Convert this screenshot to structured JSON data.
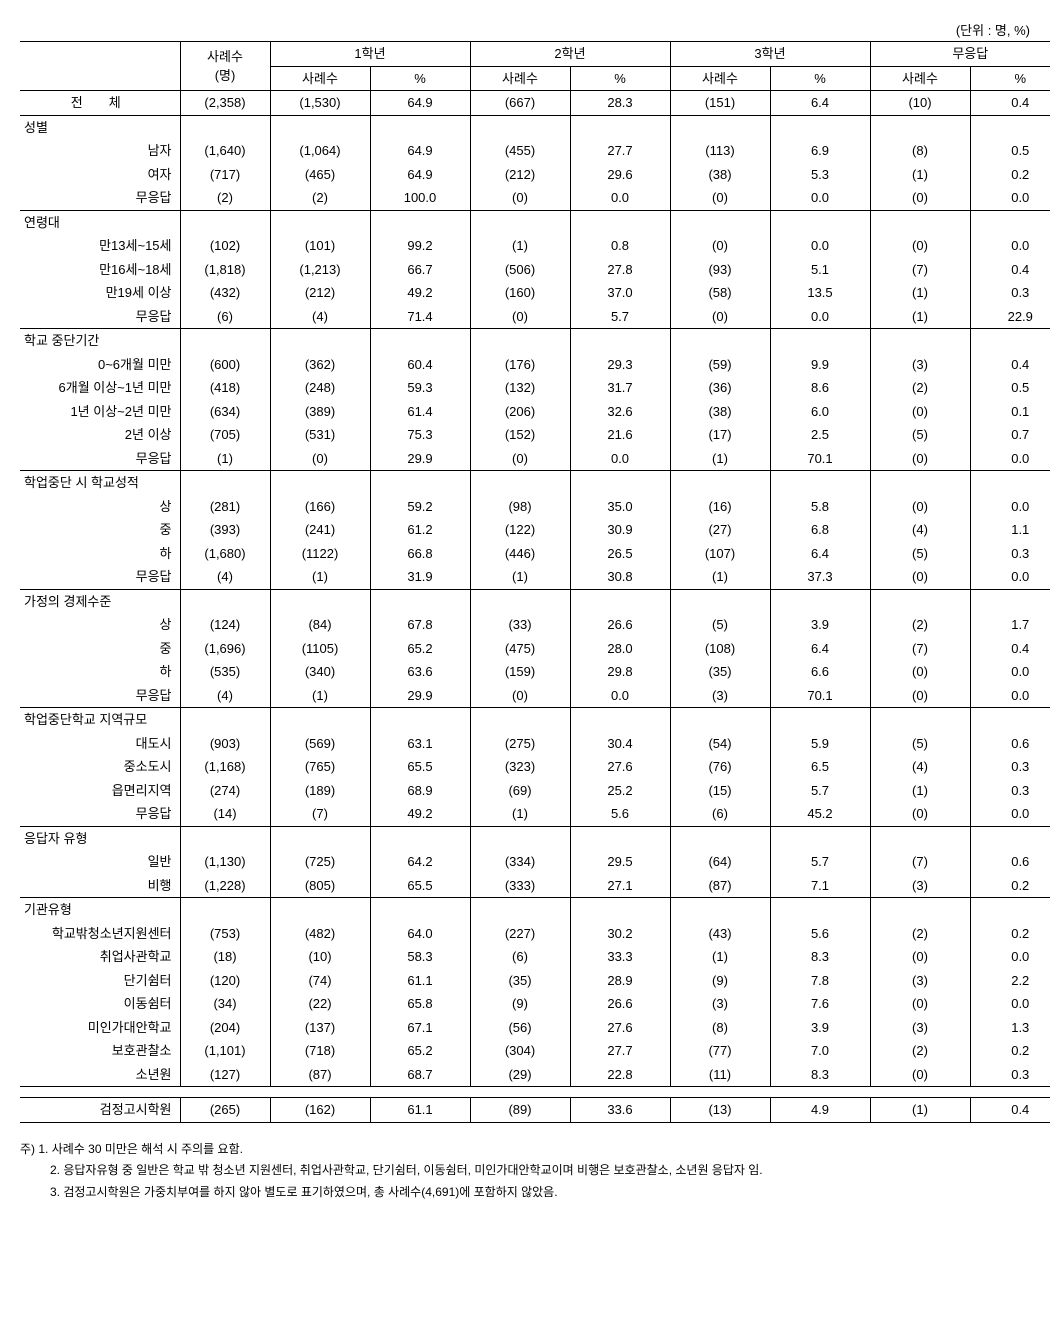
{
  "unit_label": "(단위 : 명, %)",
  "header": {
    "row_label": "",
    "count_label": "사례수",
    "count_sub": "(명)",
    "groups": [
      "1학년",
      "2학년",
      "3학년",
      "무응답"
    ],
    "sub_n": "사례수",
    "sub_p": "%"
  },
  "total_row": {
    "label": "전체",
    "count": "(2,358)",
    "c1n": "(1,530)",
    "c1p": "64.9",
    "c2n": "(667)",
    "c2p": "28.3",
    "c3n": "(151)",
    "c3p": "6.4",
    "c4n": "(10)",
    "c4p": "0.4"
  },
  "sections": [
    {
      "title": "성별",
      "rows": [
        {
          "label": "남자",
          "count": "(1,640)",
          "c1n": "(1,064)",
          "c1p": "64.9",
          "c2n": "(455)",
          "c2p": "27.7",
          "c3n": "(113)",
          "c3p": "6.9",
          "c4n": "(8)",
          "c4p": "0.5"
        },
        {
          "label": "여자",
          "count": "(717)",
          "c1n": "(465)",
          "c1p": "64.9",
          "c2n": "(212)",
          "c2p": "29.6",
          "c3n": "(38)",
          "c3p": "5.3",
          "c4n": "(1)",
          "c4p": "0.2"
        },
        {
          "label": "무응답",
          "count": "(2)",
          "c1n": "(2)",
          "c1p": "100.0",
          "c2n": "(0)",
          "c2p": "0.0",
          "c3n": "(0)",
          "c3p": "0.0",
          "c4n": "(0)",
          "c4p": "0.0"
        }
      ]
    },
    {
      "title": "연령대",
      "rows": [
        {
          "label": "만13세~15세",
          "count": "(102)",
          "c1n": "(101)",
          "c1p": "99.2",
          "c2n": "(1)",
          "c2p": "0.8",
          "c3n": "(0)",
          "c3p": "0.0",
          "c4n": "(0)",
          "c4p": "0.0"
        },
        {
          "label": "만16세~18세",
          "count": "(1,818)",
          "c1n": "(1,213)",
          "c1p": "66.7",
          "c2n": "(506)",
          "c2p": "27.8",
          "c3n": "(93)",
          "c3p": "5.1",
          "c4n": "(7)",
          "c4p": "0.4"
        },
        {
          "label": "만19세 이상",
          "count": "(432)",
          "c1n": "(212)",
          "c1p": "49.2",
          "c2n": "(160)",
          "c2p": "37.0",
          "c3n": "(58)",
          "c3p": "13.5",
          "c4n": "(1)",
          "c4p": "0.3"
        },
        {
          "label": "무응답",
          "count": "(6)",
          "c1n": "(4)",
          "c1p": "71.4",
          "c2n": "(0)",
          "c2p": "5.7",
          "c3n": "(0)",
          "c3p": "0.0",
          "c4n": "(1)",
          "c4p": "22.9"
        }
      ]
    },
    {
      "title": "학교 중단기간",
      "rows": [
        {
          "label": "0~6개월 미만",
          "count": "(600)",
          "c1n": "(362)",
          "c1p": "60.4",
          "c2n": "(176)",
          "c2p": "29.3",
          "c3n": "(59)",
          "c3p": "9.9",
          "c4n": "(3)",
          "c4p": "0.4"
        },
        {
          "label": "6개월 이상~1년 미만",
          "count": "(418)",
          "c1n": "(248)",
          "c1p": "59.3",
          "c2n": "(132)",
          "c2p": "31.7",
          "c3n": "(36)",
          "c3p": "8.6",
          "c4n": "(2)",
          "c4p": "0.5"
        },
        {
          "label": "1년 이상~2년 미만",
          "count": "(634)",
          "c1n": "(389)",
          "c1p": "61.4",
          "c2n": "(206)",
          "c2p": "32.6",
          "c3n": "(38)",
          "c3p": "6.0",
          "c4n": "(0)",
          "c4p": "0.1"
        },
        {
          "label": "2년 이상",
          "count": "(705)",
          "c1n": "(531)",
          "c1p": "75.3",
          "c2n": "(152)",
          "c2p": "21.6",
          "c3n": "(17)",
          "c3p": "2.5",
          "c4n": "(5)",
          "c4p": "0.7"
        },
        {
          "label": "무응답",
          "count": "(1)",
          "c1n": "(0)",
          "c1p": "29.9",
          "c2n": "(0)",
          "c2p": "0.0",
          "c3n": "(1)",
          "c3p": "70.1",
          "c4n": "(0)",
          "c4p": "0.0"
        }
      ]
    },
    {
      "title": "학업중단 시 학교성적",
      "rows": [
        {
          "label": "상",
          "count": "(281)",
          "c1n": "(166)",
          "c1p": "59.2",
          "c2n": "(98)",
          "c2p": "35.0",
          "c3n": "(16)",
          "c3p": "5.8",
          "c4n": "(0)",
          "c4p": "0.0"
        },
        {
          "label": "중",
          "count": "(393)",
          "c1n": "(241)",
          "c1p": "61.2",
          "c2n": "(122)",
          "c2p": "30.9",
          "c3n": "(27)",
          "c3p": "6.8",
          "c4n": "(4)",
          "c4p": "1.1"
        },
        {
          "label": "하",
          "count": "(1,680)",
          "c1n": "(1122)",
          "c1p": "66.8",
          "c2n": "(446)",
          "c2p": "26.5",
          "c3n": "(107)",
          "c3p": "6.4",
          "c4n": "(5)",
          "c4p": "0.3"
        },
        {
          "label": "무응답",
          "count": "(4)",
          "c1n": "(1)",
          "c1p": "31.9",
          "c2n": "(1)",
          "c2p": "30.8",
          "c3n": "(1)",
          "c3p": "37.3",
          "c4n": "(0)",
          "c4p": "0.0"
        }
      ]
    },
    {
      "title": "가정의 경제수준",
      "rows": [
        {
          "label": "상",
          "count": "(124)",
          "c1n": "(84)",
          "c1p": "67.8",
          "c2n": "(33)",
          "c2p": "26.6",
          "c3n": "(5)",
          "c3p": "3.9",
          "c4n": "(2)",
          "c4p": "1.7"
        },
        {
          "label": "중",
          "count": "(1,696)",
          "c1n": "(1105)",
          "c1p": "65.2",
          "c2n": "(475)",
          "c2p": "28.0",
          "c3n": "(108)",
          "c3p": "6.4",
          "c4n": "(7)",
          "c4p": "0.4"
        },
        {
          "label": "하",
          "count": "(535)",
          "c1n": "(340)",
          "c1p": "63.6",
          "c2n": "(159)",
          "c2p": "29.8",
          "c3n": "(35)",
          "c3p": "6.6",
          "c4n": "(0)",
          "c4p": "0.0"
        },
        {
          "label": "무응답",
          "count": "(4)",
          "c1n": "(1)",
          "c1p": "29.9",
          "c2n": "(0)",
          "c2p": "0.0",
          "c3n": "(3)",
          "c3p": "70.1",
          "c4n": "(0)",
          "c4p": "0.0"
        }
      ]
    },
    {
      "title": "학업중단학교 지역규모",
      "rows": [
        {
          "label": "대도시",
          "count": "(903)",
          "c1n": "(569)",
          "c1p": "63.1",
          "c2n": "(275)",
          "c2p": "30.4",
          "c3n": "(54)",
          "c3p": "5.9",
          "c4n": "(5)",
          "c4p": "0.6"
        },
        {
          "label": "중소도시",
          "count": "(1,168)",
          "c1n": "(765)",
          "c1p": "65.5",
          "c2n": "(323)",
          "c2p": "27.6",
          "c3n": "(76)",
          "c3p": "6.5",
          "c4n": "(4)",
          "c4p": "0.3"
        },
        {
          "label": "읍면리지역",
          "count": "(274)",
          "c1n": "(189)",
          "c1p": "68.9",
          "c2n": "(69)",
          "c2p": "25.2",
          "c3n": "(15)",
          "c3p": "5.7",
          "c4n": "(1)",
          "c4p": "0.3"
        },
        {
          "label": "무응답",
          "count": "(14)",
          "c1n": "(7)",
          "c1p": "49.2",
          "c2n": "(1)",
          "c2p": "5.6",
          "c3n": "(6)",
          "c3p": "45.2",
          "c4n": "(0)",
          "c4p": "0.0"
        }
      ]
    },
    {
      "title": "응답자 유형",
      "rows": [
        {
          "label": "일반",
          "count": "(1,130)",
          "c1n": "(725)",
          "c1p": "64.2",
          "c2n": "(334)",
          "c2p": "29.5",
          "c3n": "(64)",
          "c3p": "5.7",
          "c4n": "(7)",
          "c4p": "0.6"
        },
        {
          "label": "비행",
          "count": "(1,228)",
          "c1n": "(805)",
          "c1p": "65.5",
          "c2n": "(333)",
          "c2p": "27.1",
          "c3n": "(87)",
          "c3p": "7.1",
          "c4n": "(3)",
          "c4p": "0.2"
        }
      ]
    },
    {
      "title": "기관유형",
      "rows": [
        {
          "label": "학교밖청소년지원센터",
          "count": "(753)",
          "c1n": "(482)",
          "c1p": "64.0",
          "c2n": "(227)",
          "c2p": "30.2",
          "c3n": "(43)",
          "c3p": "5.6",
          "c4n": "(2)",
          "c4p": "0.2"
        },
        {
          "label": "취업사관학교",
          "count": "(18)",
          "c1n": "(10)",
          "c1p": "58.3",
          "c2n": "(6)",
          "c2p": "33.3",
          "c3n": "(1)",
          "c3p": "8.3",
          "c4n": "(0)",
          "c4p": "0.0"
        },
        {
          "label": "단기쉼터",
          "count": "(120)",
          "c1n": "(74)",
          "c1p": "61.1",
          "c2n": "(35)",
          "c2p": "28.9",
          "c3n": "(9)",
          "c3p": "7.8",
          "c4n": "(3)",
          "c4p": "2.2"
        },
        {
          "label": "이동쉼터",
          "count": "(34)",
          "c1n": "(22)",
          "c1p": "65.8",
          "c2n": "(9)",
          "c2p": "26.6",
          "c3n": "(3)",
          "c3p": "7.6",
          "c4n": "(0)",
          "c4p": "0.0"
        },
        {
          "label": "미인가대안학교",
          "count": "(204)",
          "c1n": "(137)",
          "c1p": "67.1",
          "c2n": "(56)",
          "c2p": "27.6",
          "c3n": "(8)",
          "c3p": "3.9",
          "c4n": "(3)",
          "c4p": "1.3"
        },
        {
          "label": "보호관찰소",
          "count": "(1,101)",
          "c1n": "(718)",
          "c1p": "65.2",
          "c2n": "(304)",
          "c2p": "27.7",
          "c3n": "(77)",
          "c3p": "7.0",
          "c4n": "(2)",
          "c4p": "0.2"
        },
        {
          "label": "소년원",
          "count": "(127)",
          "c1n": "(87)",
          "c1p": "68.7",
          "c2n": "(29)",
          "c2p": "22.8",
          "c3n": "(11)",
          "c3p": "8.3",
          "c4n": "(0)",
          "c4p": "0.3"
        }
      ]
    }
  ],
  "final_row": {
    "label": "검정고시학원",
    "count": "(265)",
    "c1n": "(162)",
    "c1p": "61.1",
    "c2n": "(89)",
    "c2p": "33.6",
    "c3n": "(13)",
    "c3p": "4.9",
    "c4n": "(1)",
    "c4p": "0.4"
  },
  "footnotes": [
    "주) 1. 사례수 30 미만은 해석 시 주의를 요함.",
    "2. 응답자유형 중 일반은 학교 밖 청소년 지원센터, 취업사관학교, 단기쉼터, 이동쉼터, 미인가대안학교이며 비행은 보호관찰소, 소년원 응답자 임.",
    "3. 검정고시학원은 가중치부여를 하지 않아 별도로 표기하였으며, 총 사례수(4,691)에 포함하지 않았음."
  ]
}
